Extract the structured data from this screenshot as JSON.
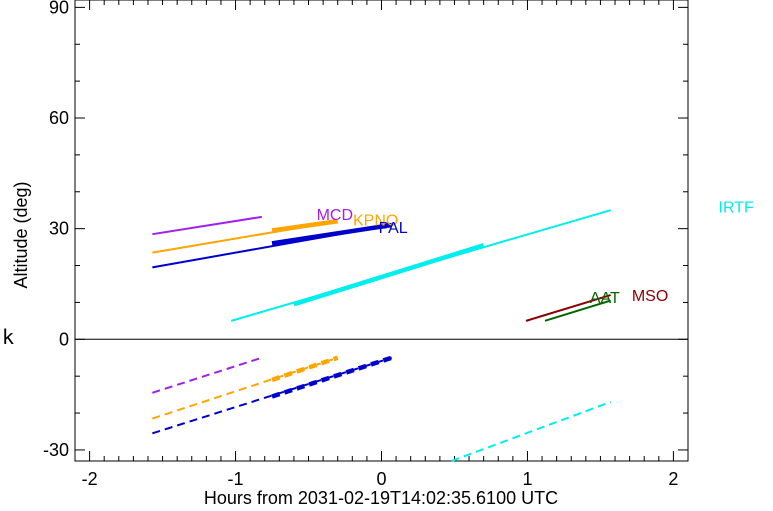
{
  "chart_data": {
    "type": "line",
    "xlabel": "Hours from 2031-02-19T14:02:35.6100 UTC",
    "ylabel": "Altitude (deg)",
    "xlim": [
      -2.1,
      2.1
    ],
    "ylim": [
      -33,
      92
    ],
    "xticks": [
      -2,
      -1,
      0,
      1,
      2
    ],
    "yticks": [
      -30,
      0,
      30,
      60,
      90
    ],
    "zero_line": true,
    "side_letter": "k",
    "series": [
      {
        "name": "MCD",
        "color": "#a020f0",
        "solid": [
          [
            -1.57,
            28.5
          ],
          [
            -0.82,
            33.2
          ]
        ],
        "dashed": [
          [
            -1.57,
            -14.5
          ],
          [
            -0.82,
            -5.0
          ]
        ],
        "label_at": [
          -0.32,
          34.0
        ]
      },
      {
        "name": "KPNO",
        "color": "#ffa500",
        "solid": [
          [
            -1.57,
            23.5
          ],
          [
            -0.3,
            32.0
          ]
        ],
        "thick": [
          [
            -0.75,
            29.5
          ],
          [
            -0.3,
            32.0
          ]
        ],
        "dashed": [
          [
            -1.57,
            -21.5
          ],
          [
            -0.3,
            -5.0
          ]
        ],
        "thick_dashed": [
          [
            -0.75,
            -11.0
          ],
          [
            -0.3,
            -5.0
          ]
        ],
        "label_at": [
          -0.04,
          32.5
        ]
      },
      {
        "name": "PAL",
        "color": "#0000cd",
        "solid": [
          [
            -1.57,
            19.5
          ],
          [
            0.07,
            31.0
          ]
        ],
        "thick": [
          [
            -0.75,
            26.0
          ],
          [
            0.07,
            31.0
          ]
        ],
        "dashed": [
          [
            -1.57,
            -25.5
          ],
          [
            0.07,
            -5.0
          ]
        ],
        "thick_dashed": [
          [
            -0.75,
            -15.5
          ],
          [
            0.07,
            -5.0
          ]
        ],
        "label_at": [
          0.08,
          30.5
        ]
      },
      {
        "name": "IRTF",
        "color": "#00eeee",
        "solid": [
          [
            -1.03,
            5.0
          ],
          [
            1.57,
            35.0
          ]
        ],
        "thick": [
          [
            -0.6,
            9.5
          ],
          [
            0.7,
            25.5
          ]
        ],
        "dashed": [
          [
            0.48,
            -33.0
          ],
          [
            1.57,
            -17.0
          ]
        ],
        "label_at": [
          2.43,
          36.0
        ]
      },
      {
        "name": "MSO",
        "color": "#8b0000",
        "solid": [
          [
            0.99,
            5.0
          ],
          [
            1.57,
            12.0
          ]
        ],
        "label_at": [
          1.84,
          12.0
        ]
      },
      {
        "name": "AAT",
        "color": "#006400",
        "solid": [
          [
            1.12,
            5.0
          ],
          [
            1.57,
            10.5
          ]
        ],
        "label_at": [
          1.53,
          11.5
        ]
      }
    ]
  }
}
